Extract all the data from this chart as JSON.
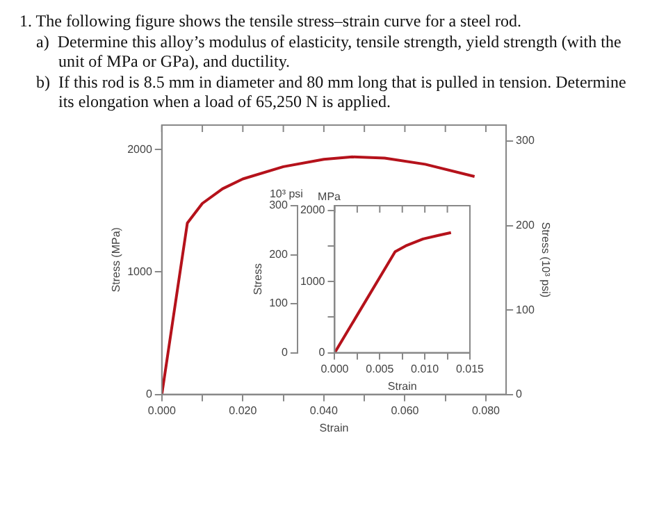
{
  "chart_data": [
    {
      "type": "line",
      "title": "1. The following figure shows the tensile stress–strain curve for a steel rod.",
      "annotations": [
        "a)\tDetermine this alloy’s modulus of elasticity, tensile strength, yield strength (with the unit of MPa or GPa), and ductility.",
        "b)\tIf this rod is 8.5 mm in diameter and 80 mm long that is pulled in tension. Determine its elongation when a load of 65,250 N is applied."
      ],
      "xlabel": "Strain",
      "ylabel": "Stress (MPa)",
      "y2label": "Stress (10³ psi)",
      "x": [
        0,
        0.0063,
        0.01,
        0.015,
        0.02,
        0.03,
        0.04,
        0.047,
        0.055,
        0.065,
        0.0772
      ],
      "series": [
        {
          "color": "#b5121b",
          "values": [
            0,
            1400,
            1560,
            1680,
            1760,
            1860,
            1920,
            1940,
            1930,
            1880,
            1780
          ]
        }
      ],
      "xlim": [
        0,
        0.085
      ],
      "xticks": [
        {
          "value": 0,
          "label": "0.000"
        },
        {
          "value": 0.01,
          "label": null
        },
        {
          "value": 0.02,
          "label": "0.020"
        },
        {
          "value": 0.03,
          "label": null
        },
        {
          "value": 0.04,
          "label": "0.040"
        },
        {
          "value": 0.05,
          "label": null
        },
        {
          "value": 0.06,
          "label": "0.060"
        },
        {
          "value": 0.07,
          "label": null
        },
        {
          "value": 0.08,
          "label": "0.080"
        }
      ],
      "ylim": [
        0,
        2200
      ],
      "yticks": [
        0,
        1000,
        2000
      ],
      "y2lim": [
        0,
        319
      ],
      "y2ticks": [
        0,
        100,
        200,
        300
      ],
      "marker": "none",
      "line_style": "solid"
    },
    {
      "type": "line",
      "xlabel": "Strain",
      "ylabel": "MPa",
      "y2label": "Stress",
      "annotations": [
        "10³ psi"
      ],
      "x": [
        0,
        0.0067,
        0.008,
        0.0098,
        0.0115,
        0.0129
      ],
      "series": [
        {
          "color": "#b5121b",
          "values": [
            0,
            1420,
            1510,
            1600,
            1650,
            1690
          ]
        }
      ],
      "xlim": [
        0,
        0.015
      ],
      "xticks": [
        {
          "value": 0,
          "label": "0.000"
        },
        {
          "value": 0.0025,
          "label": null
        },
        {
          "value": 0.005,
          "label": "0.005"
        },
        {
          "value": 0.0075,
          "label": null
        },
        {
          "value": 0.01,
          "label": "0.010"
        },
        {
          "value": 0.0125,
          "label": null
        },
        {
          "value": 0.015,
          "label": "0.015"
        }
      ],
      "ylim": [
        0,
        2068
      ],
      "yticks": [
        0,
        {
          "value": 500,
          "label": null
        },
        1000,
        {
          "value": 1500,
          "label": null
        },
        2000
      ],
      "y2lim": [
        0,
        300
      ],
      "y2ticks": [
        0,
        100,
        200,
        300
      ],
      "marker": "none",
      "line_style": "solid"
    }
  ]
}
